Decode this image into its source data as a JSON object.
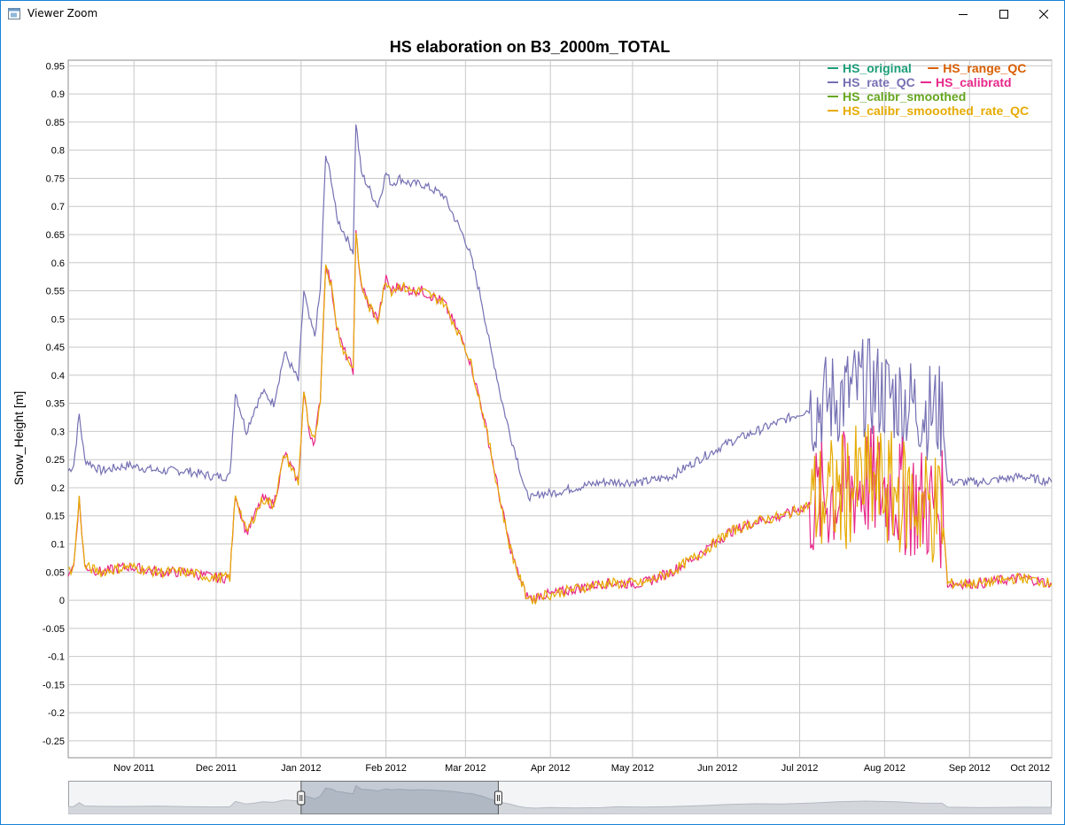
{
  "window": {
    "title": "Viewer Zoom",
    "icons": {
      "app": "app-window-icon",
      "minimize": "minimize-icon",
      "maximize": "maximize-icon",
      "close": "close-icon"
    }
  },
  "chart_data": {
    "type": "line",
    "title": "HS elaboration on B3_2000m_TOTAL",
    "xlabel": "",
    "ylabel": "Snow_Height [m]",
    "ylim": [
      -0.28,
      0.96
    ],
    "y_ticks": [
      "0.95",
      "0.9",
      "0.85",
      "0.8",
      "0.75",
      "0.7",
      "0.65",
      "0.6",
      "0.55",
      "0.5",
      "0.45",
      "0.4",
      "0.35",
      "0.3",
      "0.25",
      "0.2",
      "0.15",
      "0.1",
      "0.05",
      "0",
      "-0.05",
      "-0.1",
      "-0.15",
      "-0.2",
      "-0.25"
    ],
    "x_ticks": [
      "Nov 2011",
      "Dec 2011",
      "Jan 2012",
      "Feb 2012",
      "Mar 2012",
      "Apr 2012",
      "May 2012",
      "Jun 2012",
      "Jul 2012",
      "Aug 2012",
      "Sep 2012",
      "Oct 2012"
    ],
    "x_range": [
      "2011-10-08",
      "2012-10-01"
    ],
    "grid": true,
    "legend_position": "top-right",
    "legend": [
      {
        "name": "HS_original",
        "color": "#1b9e77"
      },
      {
        "name": "HS_range_QC",
        "color": "#d95f02"
      },
      {
        "name": "HS_rate_QC",
        "color": "#7570b3"
      },
      {
        "name": "HS_calibratd",
        "color": "#e7298a"
      },
      {
        "name": "HS_calibr_smoothed",
        "color": "#66a61e"
      },
      {
        "name": "HS_calibr_smooothed_rate_QC",
        "color": "#e6ab02"
      }
    ],
    "series": [
      {
        "name": "HS_rate_QC",
        "color": "#7570b3",
        "x": [
          "2011-10-08",
          "2011-10-10",
          "2011-10-12",
          "2011-10-14",
          "2011-10-20",
          "2011-10-30",
          "2011-11-10",
          "2011-11-20",
          "2011-11-30",
          "2011-12-06",
          "2011-12-08",
          "2011-12-12",
          "2011-12-15",
          "2011-12-18",
          "2011-12-22",
          "2011-12-26",
          "2011-12-31",
          "2012-01-02",
          "2012-01-04",
          "2012-01-06",
          "2012-01-08",
          "2012-01-10",
          "2012-01-12",
          "2012-01-14",
          "2012-01-16",
          "2012-01-18",
          "2012-01-20",
          "2012-01-21",
          "2012-01-23",
          "2012-01-26",
          "2012-01-29",
          "2012-02-01",
          "2012-02-03",
          "2012-02-06",
          "2012-02-10",
          "2012-02-14",
          "2012-02-18",
          "2012-02-22",
          "2012-02-26",
          "2012-03-01",
          "2012-03-03",
          "2012-03-07",
          "2012-03-10",
          "2012-03-12",
          "2012-03-14",
          "2012-03-17",
          "2012-03-20",
          "2012-03-23",
          "2012-03-26",
          "2012-03-28",
          "2012-04-01",
          "2012-04-10",
          "2012-04-20",
          "2012-04-25",
          "2012-05-05",
          "2012-05-15",
          "2012-05-25",
          "2012-06-05",
          "2012-06-15",
          "2012-06-25",
          "2012-07-05",
          "2012-07-15",
          "2012-07-25",
          "2012-08-05",
          "2012-08-15",
          "2012-08-22",
          "2012-08-24",
          "2012-09-05",
          "2012-09-20",
          "2012-10-01"
        ],
        "values": [
          0.23,
          0.24,
          0.33,
          0.25,
          0.23,
          0.24,
          0.23,
          0.23,
          0.22,
          0.22,
          0.37,
          0.3,
          0.34,
          0.37,
          0.35,
          0.44,
          0.39,
          0.55,
          0.5,
          0.47,
          0.55,
          0.79,
          0.75,
          0.68,
          0.66,
          0.64,
          0.62,
          0.85,
          0.76,
          0.73,
          0.7,
          0.76,
          0.74,
          0.75,
          0.74,
          0.74,
          0.73,
          0.72,
          0.68,
          0.64,
          0.61,
          0.53,
          0.45,
          0.41,
          0.36,
          0.3,
          0.25,
          0.19,
          0.18,
          0.19,
          0.19,
          0.2,
          0.21,
          0.21,
          0.21,
          0.22,
          0.25,
          0.28,
          0.3,
          0.32,
          0.34,
          0.36,
          0.38,
          0.36,
          0.34,
          0.33,
          0.21,
          0.21,
          0.22,
          0.21
        ]
      },
      {
        "name": "HS_calibratd",
        "color": "#e7298a",
        "x": [
          "2011-10-08",
          "2011-10-10",
          "2011-10-12",
          "2011-10-14",
          "2011-10-20",
          "2011-10-30",
          "2011-11-10",
          "2011-11-20",
          "2011-11-30",
          "2011-12-06",
          "2011-12-08",
          "2011-12-12",
          "2011-12-15",
          "2011-12-18",
          "2011-12-22",
          "2011-12-26",
          "2011-12-31",
          "2012-01-02",
          "2012-01-04",
          "2012-01-06",
          "2012-01-08",
          "2012-01-10",
          "2012-01-12",
          "2012-01-14",
          "2012-01-16",
          "2012-01-18",
          "2012-01-20",
          "2012-01-21",
          "2012-01-23",
          "2012-01-26",
          "2012-01-29",
          "2012-02-01",
          "2012-02-03",
          "2012-02-06",
          "2012-02-10",
          "2012-02-14",
          "2012-02-18",
          "2012-02-22",
          "2012-02-26",
          "2012-03-01",
          "2012-03-03",
          "2012-03-07",
          "2012-03-10",
          "2012-03-12",
          "2012-03-14",
          "2012-03-17",
          "2012-03-20",
          "2012-03-23",
          "2012-03-26",
          "2012-03-28",
          "2012-04-01",
          "2012-04-10",
          "2012-04-20",
          "2012-04-25",
          "2012-05-05",
          "2012-05-15",
          "2012-05-25",
          "2012-06-05",
          "2012-06-15",
          "2012-06-25",
          "2012-07-05",
          "2012-07-15",
          "2012-07-25",
          "2012-08-05",
          "2012-08-15",
          "2012-08-22",
          "2012-08-24",
          "2012-09-05",
          "2012-09-20",
          "2012-10-01"
        ],
        "values": [
          0.05,
          0.06,
          0.18,
          0.06,
          0.05,
          0.06,
          0.05,
          0.05,
          0.04,
          0.04,
          0.19,
          0.12,
          0.15,
          0.18,
          0.17,
          0.26,
          0.21,
          0.37,
          0.3,
          0.28,
          0.36,
          0.6,
          0.56,
          0.49,
          0.45,
          0.43,
          0.41,
          0.65,
          0.56,
          0.52,
          0.5,
          0.57,
          0.55,
          0.56,
          0.55,
          0.55,
          0.54,
          0.53,
          0.49,
          0.45,
          0.42,
          0.34,
          0.27,
          0.22,
          0.17,
          0.1,
          0.05,
          0.01,
          0.0,
          0.01,
          0.01,
          0.02,
          0.03,
          0.03,
          0.03,
          0.05,
          0.08,
          0.12,
          0.14,
          0.15,
          0.17,
          0.19,
          0.21,
          0.19,
          0.17,
          0.16,
          0.03,
          0.03,
          0.04,
          0.03
        ]
      },
      {
        "name": "HS_calibr_smooothed_rate_QC",
        "color": "#e6ab02",
        "x": [
          "2011-10-08",
          "2011-10-10",
          "2011-10-12",
          "2011-10-14",
          "2011-10-20",
          "2011-10-30",
          "2011-11-10",
          "2011-11-20",
          "2011-11-30",
          "2011-12-06",
          "2011-12-08",
          "2011-12-12",
          "2011-12-15",
          "2011-12-18",
          "2011-12-22",
          "2011-12-26",
          "2011-12-31",
          "2012-01-02",
          "2012-01-04",
          "2012-01-06",
          "2012-01-08",
          "2012-01-10",
          "2012-01-12",
          "2012-01-14",
          "2012-01-16",
          "2012-01-18",
          "2012-01-20",
          "2012-01-21",
          "2012-01-23",
          "2012-01-26",
          "2012-01-29",
          "2012-02-01",
          "2012-02-03",
          "2012-02-06",
          "2012-02-10",
          "2012-02-14",
          "2012-02-18",
          "2012-02-22",
          "2012-02-26",
          "2012-03-01",
          "2012-03-03",
          "2012-03-07",
          "2012-03-10",
          "2012-03-12",
          "2012-03-14",
          "2012-03-17",
          "2012-03-20",
          "2012-03-23",
          "2012-03-26",
          "2012-03-28",
          "2012-04-01",
          "2012-04-10",
          "2012-04-20",
          "2012-04-25",
          "2012-05-05",
          "2012-05-15",
          "2012-05-25",
          "2012-06-05",
          "2012-06-15",
          "2012-06-25",
          "2012-07-05",
          "2012-07-15",
          "2012-07-25",
          "2012-08-05",
          "2012-08-15",
          "2012-08-22",
          "2012-08-24",
          "2012-09-05",
          "2012-09-20",
          "2012-10-01"
        ],
        "values": [
          0.05,
          0.06,
          0.18,
          0.06,
          0.05,
          0.06,
          0.05,
          0.05,
          0.04,
          0.04,
          0.19,
          0.12,
          0.15,
          0.18,
          0.17,
          0.26,
          0.21,
          0.37,
          0.3,
          0.28,
          0.36,
          0.6,
          0.56,
          0.49,
          0.45,
          0.43,
          0.41,
          0.65,
          0.56,
          0.52,
          0.5,
          0.57,
          0.55,
          0.56,
          0.55,
          0.55,
          0.54,
          0.53,
          0.49,
          0.45,
          0.42,
          0.34,
          0.27,
          0.22,
          0.17,
          0.1,
          0.05,
          0.01,
          0.0,
          0.01,
          0.01,
          0.02,
          0.03,
          0.03,
          0.03,
          0.05,
          0.08,
          0.12,
          0.14,
          0.15,
          0.17,
          0.19,
          0.21,
          0.19,
          0.17,
          0.16,
          0.03,
          0.03,
          0.04,
          0.03
        ]
      }
    ],
    "navigator": {
      "window_start": "2012-01-01",
      "window_end": "2012-03-13"
    }
  }
}
